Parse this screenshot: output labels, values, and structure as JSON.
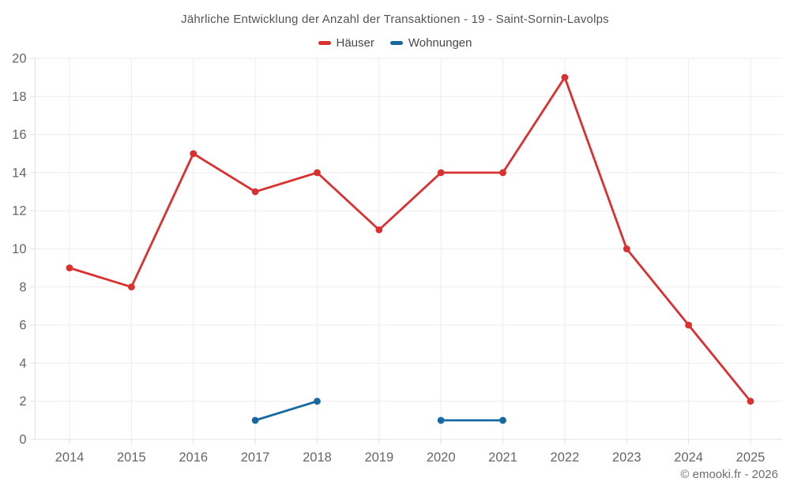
{
  "page": {
    "footer": "© emooki.fr - 2026"
  },
  "chart_data": {
    "type": "line",
    "title": "Jährliche Entwicklung der Anzahl der Transaktionen - 19 - Saint-Sornin-Lavolps",
    "categories": [
      "2014",
      "2015",
      "2016",
      "2017",
      "2018",
      "2019",
      "2020",
      "2021",
      "2022",
      "2023",
      "2024",
      "2025"
    ],
    "series": [
      {
        "name": "Häuser",
        "color": "#d93030",
        "values": [
          9,
          8,
          15,
          13,
          14,
          11,
          14,
          14,
          19,
          10,
          6,
          2
        ]
      },
      {
        "name": "Wohnungen",
        "color": "#1669a0",
        "values": [
          null,
          null,
          null,
          1,
          2,
          null,
          1,
          1,
          null,
          null,
          null,
          null
        ]
      }
    ],
    "xlabel": "",
    "ylabel": "",
    "ylim": [
      0,
      20
    ],
    "y_tick_step": 2,
    "grid": true,
    "legend_position": "top",
    "marker": "circle"
  },
  "colors": {
    "grid": "#ededed",
    "axis": "#e0e0e0",
    "tick_label": "#666666",
    "title_text": "#535353",
    "legend_text": "#484848",
    "footer_text": "#6e6e6e",
    "background": "#ffffff"
  }
}
